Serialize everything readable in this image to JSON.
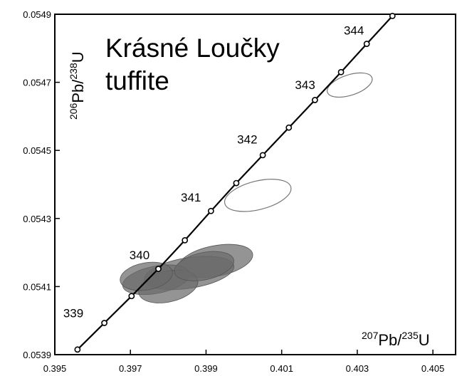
{
  "chart_data": {
    "type": "scatter",
    "title": "Krásné Loučky",
    "subtitle": "tuffite",
    "xlabel": {
      "mass": "207",
      "element": "Pb/",
      "mass2": "235",
      "element2": "U"
    },
    "ylabel": {
      "mass": "206",
      "element": "Pb/",
      "mass2": "238",
      "element2": "U"
    },
    "xlim": [
      0.395,
      0.4056
    ],
    "ylim": [
      0.0539,
      0.0549
    ],
    "x_ticks": [
      "0.395",
      "0.397",
      "0.399",
      "0.401",
      "0.403",
      "0.405"
    ],
    "y_ticks": [
      "0.0539",
      "0.0541",
      "0.0543",
      "0.0545",
      "0.0547",
      "0.0549"
    ],
    "concordia": [
      {
        "x": 0.3956,
        "y": 0.053915
      },
      {
        "x": 0.39631,
        "y": 0.053993
      },
      {
        "x": 0.39703,
        "y": 0.054072
      },
      {
        "x": 0.39774,
        "y": 0.054152
      },
      {
        "x": 0.39844,
        "y": 0.054236
      },
      {
        "x": 0.39913,
        "y": 0.054322
      },
      {
        "x": 0.3998,
        "y": 0.054404
      },
      {
        "x": 0.4005,
        "y": 0.054486
      },
      {
        "x": 0.40119,
        "y": 0.054567
      },
      {
        "x": 0.40188,
        "y": 0.054648
      },
      {
        "x": 0.40257,
        "y": 0.05473
      },
      {
        "x": 0.40325,
        "y": 0.054813
      },
      {
        "x": 0.40393,
        "y": 0.054895
      }
    ],
    "age_labels": [
      {
        "text": "339",
        "x": 0.39549,
        "y": 0.05401
      },
      {
        "text": "340",
        "x": 0.39724,
        "y": 0.05418
      },
      {
        "text": "341",
        "x": 0.3986,
        "y": 0.05435
      },
      {
        "text": "342",
        "x": 0.40009,
        "y": 0.05452
      },
      {
        "text": "343",
        "x": 0.40162,
        "y": 0.05468
      },
      {
        "text": "344",
        "x": 0.40291,
        "y": 0.05484
      }
    ],
    "ellipses": [
      {
        "x": 0.4028,
        "y": 0.054692,
        "rx": 0.00062,
        "ry": 3e-05,
        "angle": -18,
        "filled": false
      },
      {
        "x": 0.40037,
        "y": 0.054368,
        "rx": 0.0009,
        "ry": 4.2e-05,
        "angle": -14,
        "filled": false
      },
      {
        "x": 0.39925,
        "y": 0.054175,
        "rx": 0.001,
        "ry": 4.5e-05,
        "angle": -11,
        "filled": true
      },
      {
        "x": 0.39855,
        "y": 0.05414,
        "rx": 0.0012,
        "ry": 4.5e-05,
        "angle": -9,
        "filled": true
      },
      {
        "x": 0.39768,
        "y": 0.05412,
        "rx": 0.0009,
        "ry": 4e-05,
        "angle": -11,
        "filled": true
      },
      {
        "x": 0.398,
        "y": 0.0541,
        "rx": 0.0008,
        "ry": 4.5e-05,
        "angle": -13,
        "filled": true
      },
      {
        "x": 0.39742,
        "y": 0.05413,
        "rx": 0.0007,
        "ry": 4e-05,
        "angle": -10,
        "filled": true
      },
      {
        "x": 0.39895,
        "y": 0.05416,
        "rx": 0.0008,
        "ry": 4e-05,
        "angle": -12,
        "filled": true
      }
    ],
    "grid": false,
    "legend": "none"
  },
  "colors": {
    "axis": "#000000",
    "concordia": "#000000",
    "ellipse_fill": "#6b6b6b",
    "ellipse_outline": "#555555",
    "ellipse_open": "#777777"
  }
}
